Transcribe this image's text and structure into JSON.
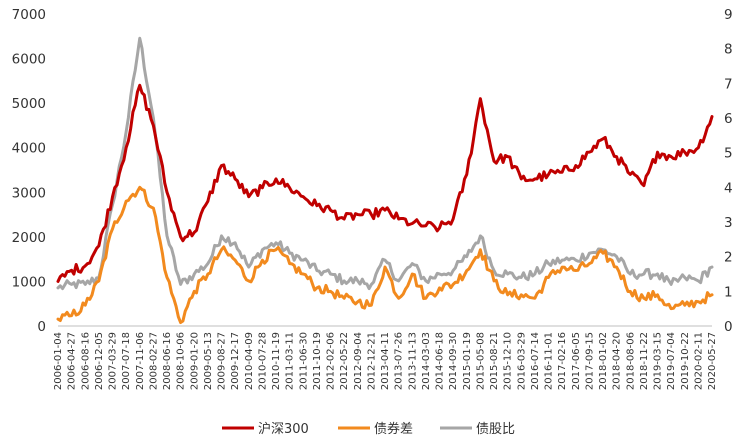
{
  "chart_data": {
    "type": "line",
    "title": "",
    "xlabel": "",
    "ylabel": "",
    "ylim_left": [
      0,
      7000
    ],
    "yticks_left": [
      "0",
      "1000",
      "2000",
      "3000",
      "4000",
      "5000",
      "6000",
      "7000"
    ],
    "ylim_right": [
      0,
      9
    ],
    "yticks_right": [
      "0",
      "1",
      "2",
      "3",
      "4",
      "5",
      "6",
      "7",
      "8",
      "9"
    ],
    "grid": false,
    "legend": "bottom",
    "x": [
      "2006-01-04",
      "2006-04-27",
      "2006-08-16",
      "2006-12-05",
      "2007-03-29",
      "2007-07-18",
      "2007-11-06",
      "2008-02-27",
      "2008-06-16",
      "2008-10-06",
      "2009-01-20",
      "2009-05-13",
      "2009-08-27",
      "2009-12-17",
      "2010-04-09",
      "2010-07-28",
      "2010-11-19",
      "2011-03-11",
      "2011-06-30",
      "2011-10-19",
      "2012-02-06",
      "2012-05-22",
      "2012-09-04",
      "2012-12-21",
      "2013-04-11",
      "2013-07-26",
      "2013-11-13",
      "2014-03-03",
      "2014-06-18",
      "2014-09-30",
      "2015-01-19",
      "2015-05-08",
      "2015-08-21",
      "2015-12-10",
      "2016-03-29",
      "2016-07-14",
      "2016-11-01",
      "2017-02-16",
      "2017-06-05",
      "2017-09-15",
      "2018-01-02",
      "2018-04-20",
      "2018-08-06",
      "2018-11-22",
      "2019-03-15",
      "2019-07-04",
      "2019-10-22",
      "2020-02-11",
      "2020-05-27"
    ],
    "series": [
      {
        "name": "沪深300",
        "axis": "left",
        "color": "#c00000",
        "values": [
          1000,
          1250,
          1350,
          1800,
          2900,
          4000,
          5400,
          4500,
          3000,
          2000,
          2100,
          2800,
          3600,
          3300,
          2900,
          3100,
          3300,
          3100,
          2900,
          2700,
          2600,
          2400,
          2500,
          2500,
          2600,
          2400,
          2300,
          2250,
          2200,
          2400,
          3400,
          5100,
          3700,
          3800,
          3300,
          3300,
          3400,
          3450,
          3600,
          3900,
          4200,
          3800,
          3400,
          3150,
          3900,
          3800,
          3900,
          4000,
          4700
        ]
      },
      {
        "name": "债券差",
        "axis": "right",
        "color": "#f28a1e",
        "values": [
          0.2,
          0.3,
          0.6,
          1.3,
          2.8,
          3.6,
          4.0,
          3.4,
          1.4,
          0.1,
          1.0,
          1.5,
          2.2,
          1.9,
          1.3,
          1.9,
          2.2,
          1.8,
          1.5,
          1.1,
          1.0,
          0.8,
          0.7,
          0.6,
          1.7,
          0.8,
          1.5,
          0.8,
          1.1,
          1.2,
          1.6,
          2.2,
          1.3,
          0.9,
          0.9,
          0.8,
          1.4,
          1.7,
          1.6,
          1.8,
          2.1,
          1.7,
          1.0,
          0.8,
          0.9,
          0.5,
          0.6,
          0.7,
          0.9
        ]
      },
      {
        "name": "债股比",
        "axis": "right",
        "color": "#a6a6a6",
        "values": [
          1.1,
          1.2,
          1.2,
          1.4,
          3.5,
          5.6,
          8.3,
          6.0,
          2.6,
          1.2,
          1.5,
          1.8,
          2.6,
          2.4,
          1.7,
          2.2,
          2.4,
          2.1,
          1.9,
          1.6,
          1.5,
          1.3,
          1.3,
          1.2,
          1.9,
          1.3,
          1.8,
          1.3,
          1.5,
          1.6,
          2.0,
          2.6,
          1.6,
          1.5,
          1.4,
          1.5,
          1.8,
          1.9,
          1.9,
          2.1,
          2.2,
          2.0,
          1.5,
          1.5,
          1.5,
          1.2,
          1.4,
          1.3,
          1.7
        ]
      }
    ]
  }
}
